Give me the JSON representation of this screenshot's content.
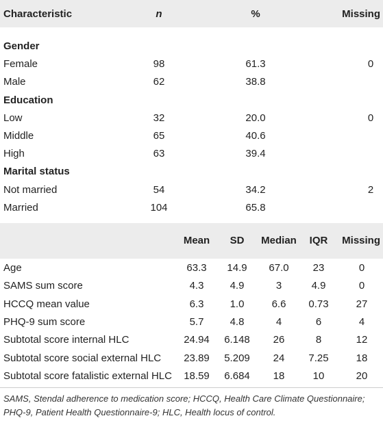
{
  "table1": {
    "header": [
      "Characteristic",
      "n",
      "%",
      "Missing"
    ],
    "groups": [
      {
        "label": "Gender",
        "missing": "0",
        "rows": [
          [
            "Female",
            "98",
            "61.3"
          ],
          [
            "Male",
            "62",
            "38.8"
          ]
        ]
      },
      {
        "label": "Education",
        "missing": "0",
        "rows": [
          [
            "Low",
            "32",
            "20.0"
          ],
          [
            "Middle",
            "65",
            "40.6"
          ],
          [
            "High",
            "63",
            "39.4"
          ]
        ]
      },
      {
        "label": "Marital status",
        "missing": "2",
        "rows": [
          [
            "Not married",
            "54",
            "34.2"
          ],
          [
            "Married",
            "104",
            "65.8"
          ]
        ]
      }
    ]
  },
  "table2": {
    "header": [
      "Mean",
      "SD",
      "Median",
      "IQR",
      "Missing"
    ],
    "rows": [
      [
        "Age",
        "63.3",
        "14.9",
        "67.0",
        "23",
        "0"
      ],
      [
        "SAMS sum score",
        "4.3",
        "4.9",
        "3",
        "4.9",
        "0"
      ],
      [
        "HCCQ mean value",
        "6.3",
        "1.0",
        "6.6",
        "0.73",
        "27"
      ],
      [
        "PHQ-9 sum score",
        "5.7",
        "4.8",
        "4",
        "6",
        "4"
      ],
      [
        "Subtotal score internal HLC",
        "24.94",
        "6.148",
        "26",
        "8",
        "12"
      ],
      [
        "Subtotal score social external HLC",
        "23.89",
        "5.209",
        "24",
        "7.25",
        "18"
      ],
      [
        "Subtotal score fatalistic external HLC",
        "18.59",
        "6.684",
        "18",
        "10",
        "20"
      ]
    ]
  },
  "footnote": [
    "SAMS, Stendal adherence to medication score; HCCQ, Health Care Climate Questionnaire; PHQ-9, Patient Health Questionnaire-9; HLC, Health locus of control."
  ]
}
